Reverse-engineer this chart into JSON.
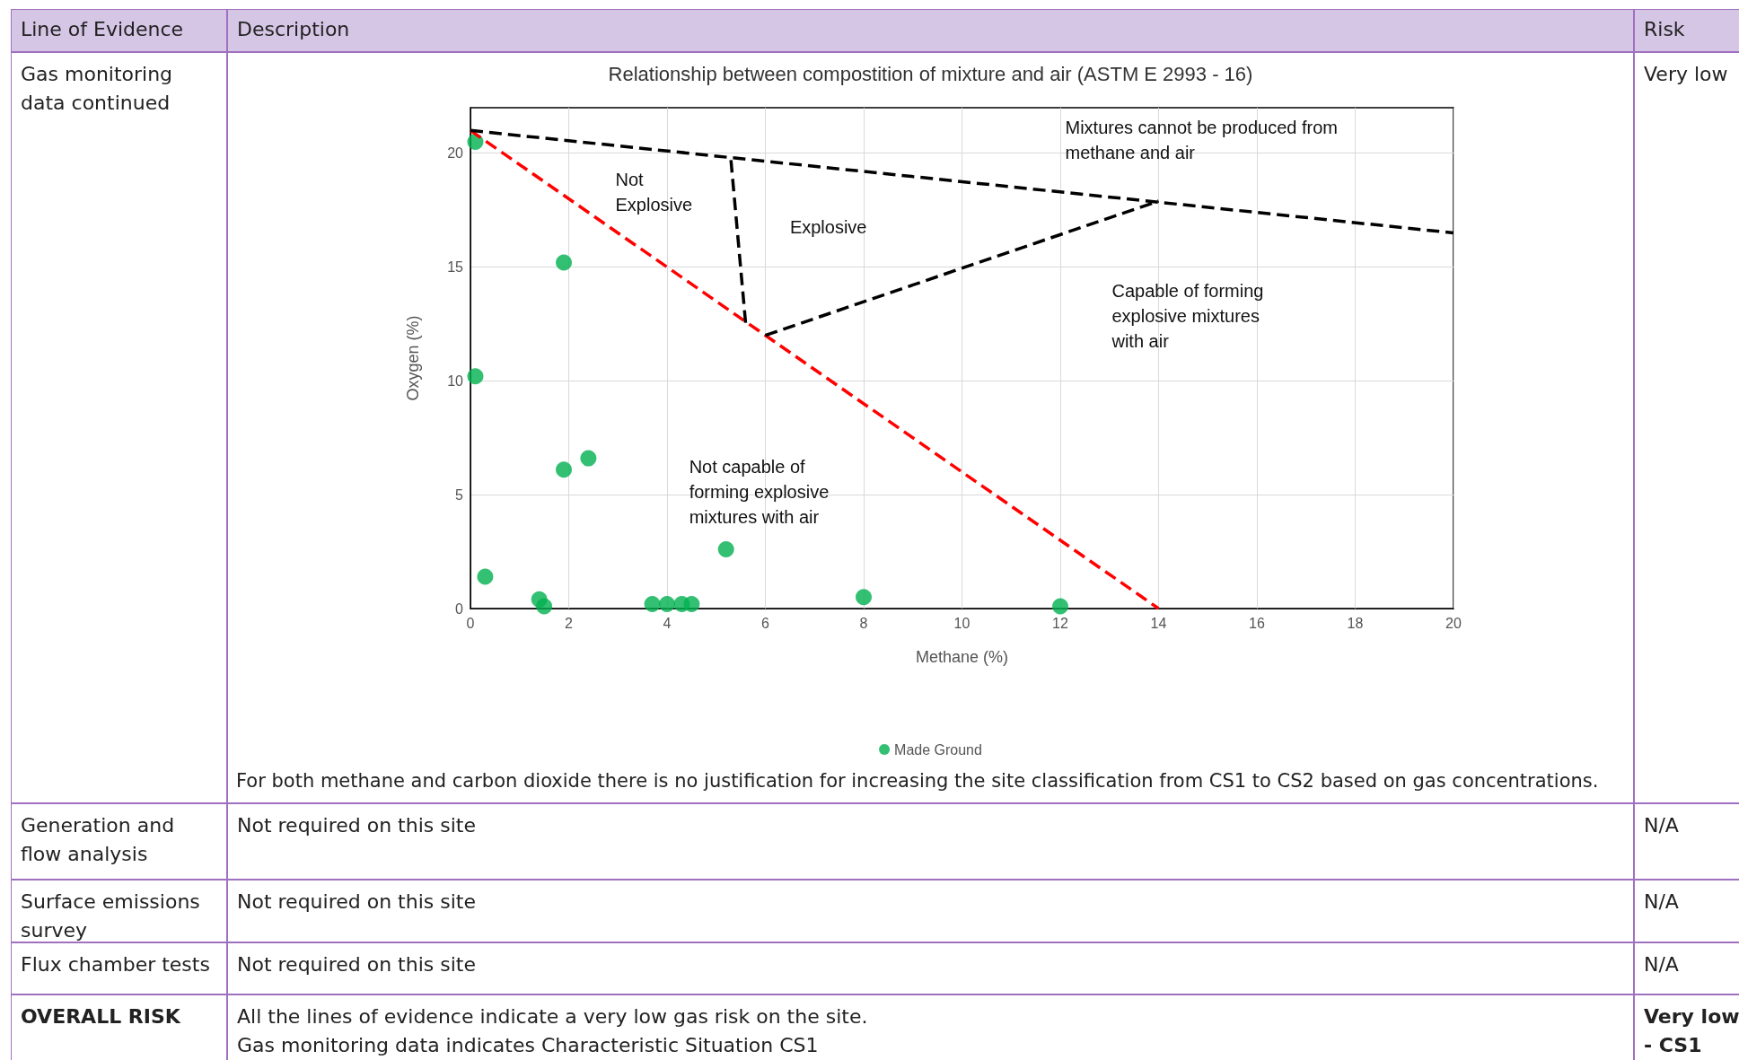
{
  "chart_data": {
    "type": "scatter",
    "title": "Relationship between compostition of mixture and air (ASTM E 2993 - 16)",
    "xlabel": "Methane (%)",
    "ylabel": "Oxygen (%)",
    "xlim": [
      0,
      20
    ],
    "xticks": [
      0,
      2,
      4,
      6,
      8,
      10,
      12,
      14,
      16,
      18,
      20
    ],
    "ylim": [
      0,
      22
    ],
    "yticks": [
      0,
      5,
      10,
      15,
      20
    ],
    "grid": true,
    "legend": "bottom",
    "marker": "circle",
    "series": [
      {
        "name": "Made Ground",
        "color": "#00b050",
        "x": [
          0.1,
          1.9,
          0.1,
          1.9,
          2.4,
          0.3,
          1.4,
          1.5,
          3.7,
          4.0,
          4.3,
          4.5,
          5.2,
          8.0,
          12.0
        ],
        "values": [
          20.5,
          15.2,
          10.2,
          6.1,
          6.6,
          1.4,
          0.4,
          0.1,
          0.2,
          0.2,
          0.2,
          0.2,
          2.6,
          0.5,
          0.1
        ]
      },
      {
        "type": "line",
        "color": "#ff0000",
        "line_style": "dashed",
        "marker": "none",
        "x": [
          0,
          14
        ],
        "values": [
          21,
          0
        ]
      },
      {
        "type": "line",
        "color": "#000000",
        "line_style": "dashed",
        "marker": "none",
        "x": [
          0,
          20
        ],
        "values": [
          21,
          16.5
        ]
      },
      {
        "type": "line",
        "color": "#000000",
        "line_style": "dashed",
        "marker": "none",
        "x": [
          5.3,
          5.6
        ],
        "values": [
          19.7,
          12.5
        ]
      },
      {
        "type": "line",
        "color": "#000000",
        "line_style": "dashed",
        "marker": "none",
        "x": [
          6.0,
          14.0
        ],
        "values": [
          12.0,
          17.9
        ]
      }
    ],
    "annotations": [
      "Not\nExplosive",
      "Explosive",
      "Mixtures cannot be produced from\nmethane and air",
      "Capable of forming\nexplosive mixtures\nwith air",
      "Not capable of\nforming explosive\nmixtures with air",
      "Line of Evidence",
      "Description",
      "Risk",
      "Gas monitoring data continued",
      "Very low",
      "For both methane and carbon dioxide there is no justification for increasing the site classification from CS1 to CS2 based on gas concentrations.",
      "Generation and flow analysis",
      "Not required on this site",
      "N/A",
      "Surface emissions survey",
      "Not required on this site",
      "N/A",
      "Flux chamber tests",
      "Not required on this site",
      "N/A",
      "OVERALL RISK",
      "All the lines of evidence indicate a very low gas risk on the site.\nGas monitoring data indicates Characteristic Situation CS1",
      "Very low - CS1"
    ]
  }
}
